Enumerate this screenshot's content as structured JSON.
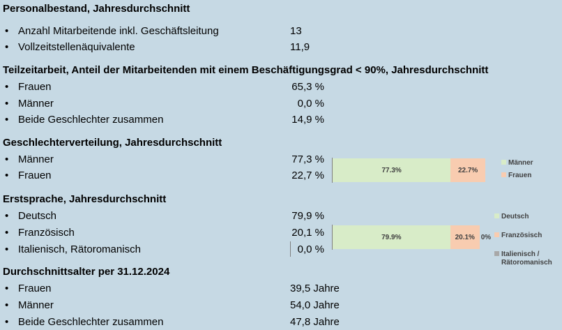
{
  "sections": {
    "personal": {
      "title": "Personalbestand, Jahresdurchschnitt",
      "rows": [
        {
          "label": "Anzahl Mitarbeitende inkl. Geschäftsleitung",
          "value": "13"
        },
        {
          "label": "Vollzeitstellenäquivalente",
          "value": "11,9"
        }
      ]
    },
    "teilzeit": {
      "title": "Teilzeitarbeit, Anteil der Mitarbeitenden mit einem Beschäftigungsgrad < 90%, Jahresdurchschnitt",
      "rows": [
        {
          "label": "Frauen",
          "value": "65,3 %"
        },
        {
          "label": "Männer",
          "value": "0,0 %"
        },
        {
          "label": "Beide Geschlechter zusammen",
          "value": "14,9 %"
        }
      ]
    },
    "geschlecht": {
      "title": "Geschlechterverteilung, Jahresdurchschnitt",
      "rows": [
        {
          "label": "Männer",
          "value": "77,3 %"
        },
        {
          "label": "Frauen",
          "value": "22,7 %"
        }
      ]
    },
    "sprache": {
      "title": "Erstsprache, Jahresdurchschnitt",
      "rows": [
        {
          "label": "Deutsch",
          "value": "79,9 %"
        },
        {
          "label": "Französisch",
          "value": "20,1 %"
        },
        {
          "label": "Italienisch, Rätoromanisch",
          "value": "0,0 %"
        }
      ]
    },
    "alter": {
      "title": "Durchschnittsalter per 31.12.2024",
      "rows": [
        {
          "label": "Frauen",
          "value": "39,5 Jahre"
        },
        {
          "label": "Männer",
          "value": "54,0 Jahre"
        },
        {
          "label": "Beide Geschlechter zusammen",
          "value": "47,8 Jahre"
        }
      ]
    }
  },
  "bullet_glyph": "•",
  "chart_data": [
    {
      "type": "bar",
      "stacked": true,
      "orientation": "horizontal",
      "title": "",
      "series": [
        {
          "name": "Männer",
          "value": 77.3,
          "label": "77.3%",
          "color": "#d8ecc8"
        },
        {
          "name": "Frauen",
          "value": 22.7,
          "label": "22.7%",
          "color": "#f8ccb0"
        }
      ],
      "legend_placement": "right"
    },
    {
      "type": "bar",
      "stacked": true,
      "orientation": "horizontal",
      "title": "",
      "series": [
        {
          "name": "Deutsch",
          "value": 79.9,
          "label": "79.9%",
          "color": "#d8ecc8"
        },
        {
          "name": "Französisch",
          "value": 20.1,
          "label": "20.1%",
          "color": "#f8ccb0"
        },
        {
          "name": "Italienisch / Rätoromanisch",
          "value": 0.0,
          "label": "0%",
          "color": "#a8a8a8"
        }
      ],
      "legend_placement": "right"
    }
  ]
}
